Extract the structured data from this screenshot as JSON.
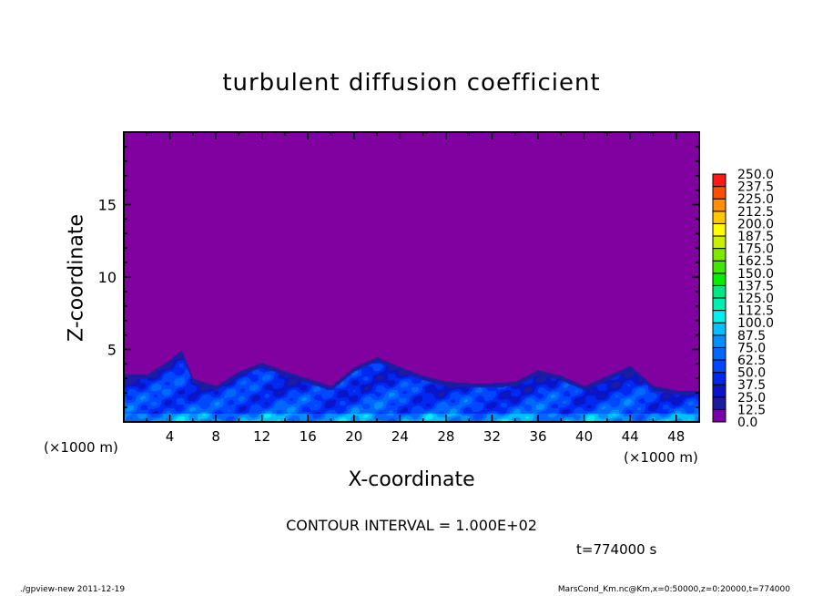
{
  "chart_data": {
    "type": "heatmap",
    "title": "turbulent diffusion coefficient",
    "xlabel": "X-coordinate",
    "ylabel": "Z-coordinate",
    "x_unit": "(×1000 m)",
    "y_unit": "(×1000 m)",
    "xlim": [
      0,
      50
    ],
    "ylim": [
      0,
      20
    ],
    "x_ticks": [
      4,
      8,
      12,
      16,
      20,
      24,
      28,
      32,
      36,
      40,
      44,
      48
    ],
    "y_ticks": [
      5,
      10,
      15
    ],
    "colorbar": {
      "levels": [
        "0.0",
        "12.5",
        "25.0",
        "37.5",
        "50.0",
        "62.5",
        "75.0",
        "87.5",
        "100.0",
        "112.5",
        "125.0",
        "137.5",
        "150.0",
        "162.5",
        "175.0",
        "187.5",
        "200.0",
        "212.5",
        "225.0",
        "237.5",
        "250.0"
      ],
      "colors": [
        "#7c00a4",
        "#1c1ca0",
        "#0a14c8",
        "#0028f0",
        "#0048ff",
        "#0068ff",
        "#0090ff",
        "#00c0ff",
        "#00f0f0",
        "#00f0b0",
        "#00e880",
        "#00f040",
        "#00f000",
        "#40e800",
        "#80e800",
        "#c8f000",
        "#ffff00",
        "#ffc800",
        "#ff9000",
        "#ff5000",
        "#ff1818",
        "#ff5050",
        "#ff8888"
      ],
      "position": "right"
    },
    "background_color": "#8000a0",
    "boundary_layer_top": {
      "x": [
        0,
        2,
        4,
        5,
        6,
        8,
        10,
        12,
        14,
        16,
        18,
        20,
        22,
        24,
        26,
        28,
        30,
        32,
        34,
        36,
        38,
        40,
        42,
        44,
        46,
        48,
        50
      ],
      "z": [
        3.3,
        3.3,
        4.3,
        5.0,
        3.0,
        2.5,
        3.5,
        4.1,
        3.5,
        3.0,
        2.5,
        3.8,
        4.5,
        3.8,
        3.2,
        2.8,
        2.7,
        2.7,
        2.8,
        3.6,
        3.2,
        2.5,
        3.2,
        3.9,
        2.5,
        2.2,
        2.2
      ]
    }
  },
  "contour_interval": "CONTOUR INTERVAL = 1.000E+02",
  "time_label": "t=774000 s",
  "footer_left": "./gpview-new  2011-12-19",
  "footer_right": "MarsCond_Km.nc@Km,x=0:50000,z=0:20000,t=774000"
}
